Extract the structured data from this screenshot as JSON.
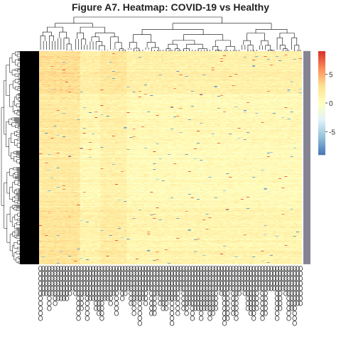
{
  "chart_data": {
    "type": "heatmap",
    "title": "Figure A7. Heatmap: COVID-19 vs Healthy",
    "n_rows": 300,
    "n_columns": 90,
    "row_dendrogram": true,
    "column_dendrogram": true,
    "legend": {
      "placement": "right",
      "ticks": [
        5,
        0,
        -5
      ],
      "range": [
        -9,
        9
      ],
      "colors": [
        "#4575b4",
        "#91bfdb",
        "#e0f3f8",
        "#ffffbf",
        "#fee090",
        "#fc8d59",
        "#d73027"
      ]
    },
    "column_blocks": [
      {
        "from": 0,
        "to": 13,
        "mean": 3.2
      },
      {
        "from": 14,
        "to": 20,
        "mean": 0.9
      },
      {
        "from": 21,
        "to": 29,
        "mean": 2.1
      },
      {
        "from": 30,
        "to": 89,
        "mean": 0.5
      }
    ],
    "row_blocks": [
      {
        "from": 0,
        "to": 60,
        "mean": 2.2
      },
      {
        "from": 61,
        "to": 130,
        "mean": 0.6
      },
      {
        "from": 131,
        "to": 220,
        "mean": 0.3
      },
      {
        "from": 221,
        "to": 299,
        "mean": 1.4
      }
    ],
    "colors": {
      "row_label_band": "#000000",
      "annotation_column": "#8a8a9a"
    }
  }
}
